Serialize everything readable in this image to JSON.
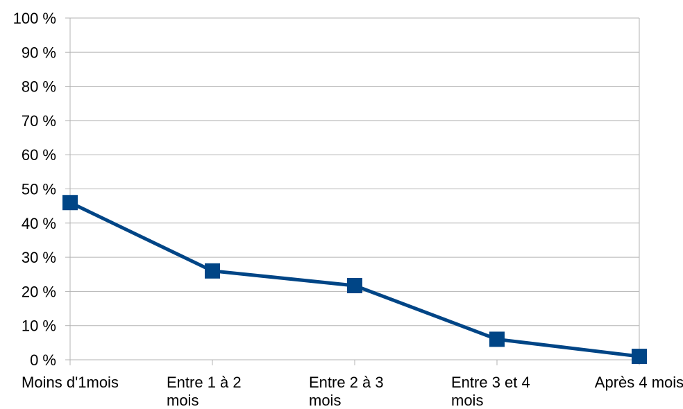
{
  "chart_data": {
    "type": "line",
    "title": "",
    "xlabel": "",
    "ylabel": "",
    "categories": [
      [
        "Moins d'1mois"
      ],
      [
        "Entre 1 à 2",
        "mois"
      ],
      [
        "Entre 2 à 3",
        "mois"
      ],
      [
        "Entre 3 et 4",
        "mois"
      ],
      [
        "Après 4 mois"
      ]
    ],
    "series": [
      {
        "values": [
          46,
          26,
          21.7,
          6,
          1
        ],
        "color": "#004586",
        "marker": "square"
      }
    ],
    "ylim": [
      0,
      100
    ],
    "yticks": [
      0,
      10,
      20,
      30,
      40,
      50,
      60,
      70,
      80,
      90,
      100
    ],
    "ytick_labels": [
      "0 %",
      "10 %",
      "20 %",
      "30 %",
      "40 %",
      "50 %",
      "60 %",
      "70 %",
      "80 %",
      "90 %",
      "100 %"
    ],
    "grid": true,
    "legend": "none"
  }
}
